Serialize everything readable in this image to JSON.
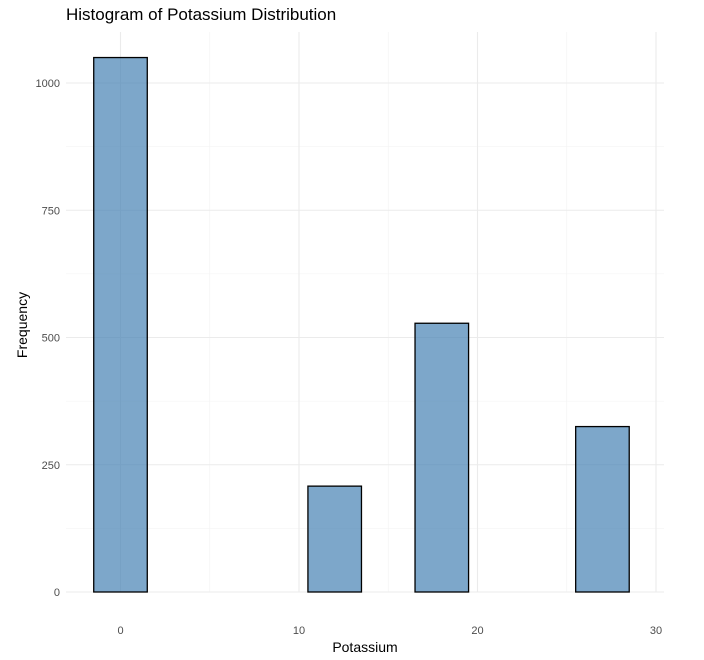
{
  "chart_data": {
    "type": "bar",
    "title": "Histogram of Potassium Distribution",
    "xlabel": "Potassium",
    "ylabel": "Frequency",
    "bins": [
      {
        "x0": -1.5,
        "x1": 1.5,
        "count": 1050
      },
      {
        "x0": 1.5,
        "x1": 4.5,
        "count": 0
      },
      {
        "x0": 4.5,
        "x1": 7.5,
        "count": 0
      },
      {
        "x0": 7.5,
        "x1": 10.5,
        "count": 0
      },
      {
        "x0": 10.5,
        "x1": 13.5,
        "count": 208
      },
      {
        "x0": 13.5,
        "x1": 16.5,
        "count": 0
      },
      {
        "x0": 16.5,
        "x1": 19.5,
        "count": 528
      },
      {
        "x0": 19.5,
        "x1": 22.5,
        "count": 0
      },
      {
        "x0": 22.5,
        "x1": 25.5,
        "count": 0
      },
      {
        "x0": 25.5,
        "x1": 28.5,
        "count": 325
      }
    ],
    "x_ticks": [
      "0",
      "10",
      "20",
      "30"
    ],
    "y_ticks": [
      "0",
      "250",
      "500",
      "750",
      "1000"
    ],
    "xlim": [
      -3,
      30
    ],
    "ylim": [
      0,
      1100
    ],
    "grid": true,
    "bar_color": "#4682B4",
    "bar_outline": "#000000"
  }
}
